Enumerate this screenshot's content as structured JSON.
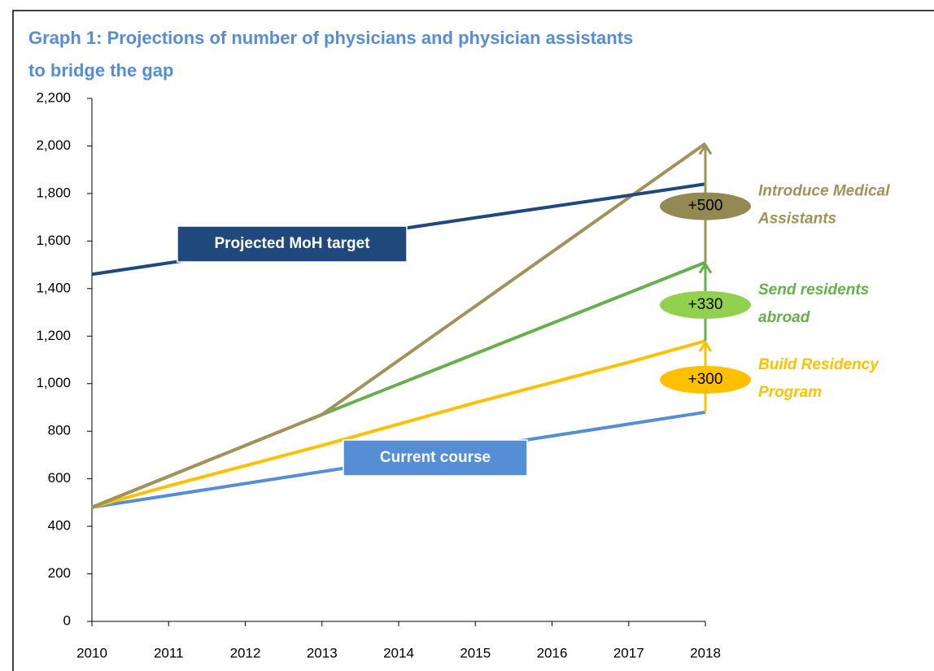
{
  "chart_data": {
    "type": "line",
    "title": [
      "Graph 1: Projections of number of physicians and physician assistants",
      "to bridge the gap"
    ],
    "x": [
      2010,
      2011,
      2012,
      2013,
      2014,
      2015,
      2016,
      2017,
      2018
    ],
    "xlim": [
      2010,
      2018
    ],
    "xticks": [
      2010,
      2011,
      2012,
      2013,
      2014,
      2015,
      2016,
      2017,
      2018
    ],
    "ylim": [
      0,
      2200
    ],
    "yticks": [
      0,
      200,
      400,
      600,
      800,
      {
        "value": 1000,
        "label": "1,000"
      },
      {
        "value": 1200,
        "label": "1,200"
      },
      {
        "value": 1400,
        "label": "1,400"
      },
      {
        "value": 1600,
        "label": "1,600"
      },
      {
        "value": 1800,
        "label": "1,800"
      },
      {
        "value": 2000,
        "label": "2,000"
      },
      {
        "value": 2200,
        "label": "2,200"
      }
    ],
    "grid": false,
    "series": [
      {
        "name": "Current course",
        "color": "#558ed5",
        "values": [
          480,
          530,
          580,
          630,
          680,
          730,
          780,
          830,
          880
        ]
      },
      {
        "color": "#ffc000",
        "values": [
          480,
          570,
          655,
          740,
          830,
          920,
          1005,
          1090,
          1180
        ],
        "annotation": {
          "text": "+300",
          "label": [
            "Build  Residency",
            "Program"
          ],
          "fill": "#ffc000"
        }
      },
      {
        "color": "#66b04c",
        "values": [
          480,
          610,
          740,
          870,
          998,
          1126,
          1254,
          1382,
          1510
        ],
        "annotation": {
          "text": "+330",
          "label": [
            "Send residents",
            "abroad"
          ],
          "fill": "#92d050"
        }
      },
      {
        "color": "#a09258",
        "values": [
          480,
          610,
          740,
          870,
          1098,
          1326,
          1554,
          1782,
          2010
        ],
        "annotation": {
          "text": "+500",
          "label": [
            "Introduce Medical",
            "Assistants"
          ],
          "fill": "#938953"
        }
      },
      {
        "name": "Projected MoH target",
        "color": "#1f497d",
        "values": [
          1460,
          1508,
          1555,
          1602,
          1650,
          1698,
          1745,
          1792,
          1840
        ]
      }
    ]
  }
}
